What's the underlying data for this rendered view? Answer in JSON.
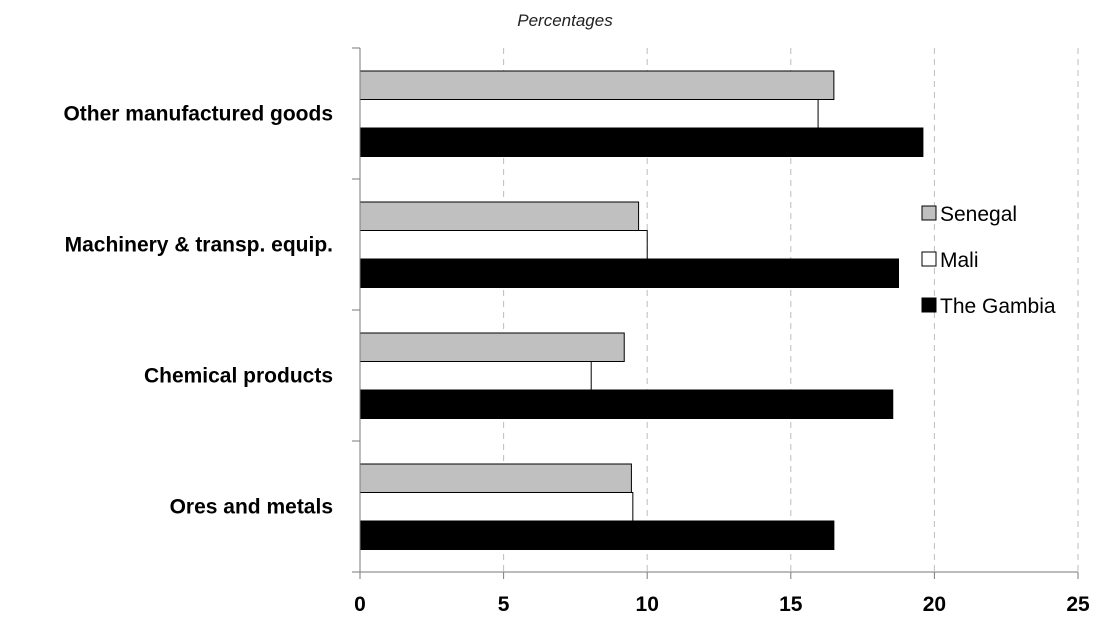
{
  "chart_data": {
    "type": "bar",
    "orientation": "horizontal",
    "xlabel": "Percentages",
    "categories": [
      "Other manufactured goods",
      "Machinery & transp. equip.",
      "Chemical products",
      "Ores and metals"
    ],
    "series": [
      {
        "name": "Senegal",
        "color": "#c0c0c0",
        "values": [
          16.5,
          9.7,
          9.2,
          9.45
        ]
      },
      {
        "name": "Mali",
        "color": "#ffffff",
        "values": [
          15.95,
          10.0,
          8.05,
          9.5
        ]
      },
      {
        "name": "The Gambia",
        "color": "#000000",
        "values": [
          19.6,
          18.75,
          18.55,
          16.5
        ]
      }
    ],
    "xlim": [
      0,
      25
    ],
    "xticks": [
      0,
      5,
      10,
      15,
      20,
      25
    ],
    "grid": "vertical dashed",
    "legend_position": "right"
  }
}
